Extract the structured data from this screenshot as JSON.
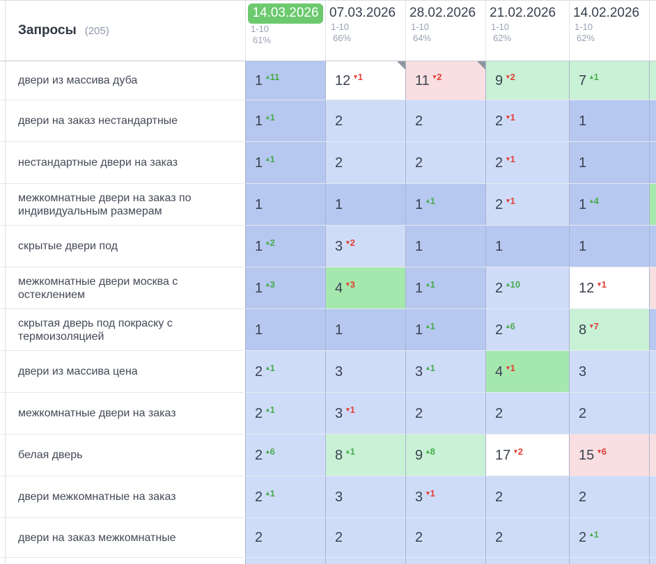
{
  "header": {
    "title": "Запросы",
    "count": "(205)"
  },
  "columns": [
    {
      "date": "14.03.2026",
      "range": "1-10",
      "percent": "61%",
      "selected": true
    },
    {
      "date": "07.03.2026",
      "range": "1-10",
      "percent": "66%"
    },
    {
      "date": "28.02.2026",
      "range": "1-10",
      "percent": "64%"
    },
    {
      "date": "21.02.2026",
      "range": "1-10",
      "percent": "62%"
    },
    {
      "date": "14.02.2026",
      "range": "1-10",
      "percent": "62%"
    },
    {
      "partial": true
    }
  ],
  "rows": [
    {
      "keyword": "двери из массива дуба",
      "extra": "lgreen",
      "cells": [
        {
          "pos": "1",
          "delta": "11",
          "dir": "up",
          "bg": "blue1"
        },
        {
          "pos": "12",
          "delta": "1",
          "dir": "down",
          "bg": "white",
          "note": true
        },
        {
          "pos": "11",
          "delta": "2",
          "dir": "down",
          "bg": "pink",
          "note": true
        },
        {
          "pos": "9",
          "delta": "2",
          "dir": "down",
          "bg": "lgreen"
        },
        {
          "pos": "7",
          "delta": "1",
          "dir": "up",
          "bg": "lgreen"
        }
      ]
    },
    {
      "keyword": "двери на заказ нестандартные",
      "extra": "blue1",
      "cells": [
        {
          "pos": "1",
          "delta": "1",
          "dir": "up",
          "bg": "blue1"
        },
        {
          "pos": "2",
          "bg": "blue2"
        },
        {
          "pos": "2",
          "bg": "blue2"
        },
        {
          "pos": "2",
          "delta": "1",
          "dir": "down",
          "bg": "blue2"
        },
        {
          "pos": "1",
          "bg": "blue1"
        }
      ]
    },
    {
      "keyword": "нестандартные двери на заказ",
      "extra": "blue1",
      "cells": [
        {
          "pos": "1",
          "delta": "1",
          "dir": "up",
          "bg": "blue1"
        },
        {
          "pos": "2",
          "bg": "blue2"
        },
        {
          "pos": "2",
          "bg": "blue2"
        },
        {
          "pos": "2",
          "delta": "1",
          "dir": "down",
          "bg": "blue2"
        },
        {
          "pos": "1",
          "bg": "blue1"
        }
      ]
    },
    {
      "keyword": "межкомнатные двери на заказ по индивидуальным размерам",
      "extra": "green",
      "cells": [
        {
          "pos": "1",
          "bg": "blue1"
        },
        {
          "pos": "1",
          "bg": "blue1"
        },
        {
          "pos": "1",
          "delta": "1",
          "dir": "up",
          "bg": "blue1"
        },
        {
          "pos": "2",
          "delta": "1",
          "dir": "down",
          "bg": "blue2"
        },
        {
          "pos": "1",
          "delta": "4",
          "dir": "up",
          "bg": "blue1"
        }
      ]
    },
    {
      "keyword": "скрытые двери под",
      "extra": "blue1",
      "cells": [
        {
          "pos": "1",
          "delta": "2",
          "dir": "up",
          "bg": "blue1"
        },
        {
          "pos": "3",
          "delta": "2",
          "dir": "down",
          "bg": "blue2"
        },
        {
          "pos": "1",
          "bg": "blue1"
        },
        {
          "pos": "1",
          "bg": "blue1"
        },
        {
          "pos": "1",
          "bg": "blue1"
        }
      ]
    },
    {
      "keyword": "межкомнатные двери москва с остеклением",
      "extra": "pink",
      "cells": [
        {
          "pos": "1",
          "delta": "3",
          "dir": "up",
          "bg": "blue1"
        },
        {
          "pos": "4",
          "delta": "3",
          "dir": "down",
          "bg": "green"
        },
        {
          "pos": "1",
          "delta": "1",
          "dir": "up",
          "bg": "blue1"
        },
        {
          "pos": "2",
          "delta": "10",
          "dir": "up",
          "bg": "blue2"
        },
        {
          "pos": "12",
          "delta": "1",
          "dir": "down",
          "bg": "white"
        }
      ]
    },
    {
      "keyword": "скрытая дверь под покраску с термоизоляцией",
      "extra": "blue1",
      "cells": [
        {
          "pos": "1",
          "bg": "blue1"
        },
        {
          "pos": "1",
          "bg": "blue1"
        },
        {
          "pos": "1",
          "delta": "1",
          "dir": "up",
          "bg": "blue1"
        },
        {
          "pos": "2",
          "delta": "6",
          "dir": "up",
          "bg": "blue2"
        },
        {
          "pos": "8",
          "delta": "7",
          "dir": "down",
          "bg": "lgreen"
        }
      ]
    },
    {
      "keyword": "двери из массива цена",
      "extra": "blue2",
      "cells": [
        {
          "pos": "2",
          "delta": "1",
          "dir": "up",
          "bg": "blue2"
        },
        {
          "pos": "3",
          "bg": "blue2"
        },
        {
          "pos": "3",
          "delta": "1",
          "dir": "up",
          "bg": "blue2"
        },
        {
          "pos": "4",
          "delta": "1",
          "dir": "down",
          "bg": "green"
        },
        {
          "pos": "3",
          "bg": "blue2"
        }
      ]
    },
    {
      "keyword": "межкомнатные двери на заказ",
      "extra": "blue2",
      "cells": [
        {
          "pos": "2",
          "delta": "1",
          "dir": "up",
          "bg": "blue2"
        },
        {
          "pos": "3",
          "delta": "1",
          "dir": "down",
          "bg": "blue2"
        },
        {
          "pos": "2",
          "bg": "blue2"
        },
        {
          "pos": "2",
          "bg": "blue2"
        },
        {
          "pos": "2",
          "bg": "blue2"
        }
      ]
    },
    {
      "keyword": "белая дверь",
      "extra": "pink",
      "cells": [
        {
          "pos": "2",
          "delta": "6",
          "dir": "up",
          "bg": "blue2"
        },
        {
          "pos": "8",
          "delta": "1",
          "dir": "up",
          "bg": "lgreen"
        },
        {
          "pos": "9",
          "delta": "8",
          "dir": "up",
          "bg": "lgreen"
        },
        {
          "pos": "17",
          "delta": "2",
          "dir": "down",
          "bg": "white"
        },
        {
          "pos": "15",
          "delta": "6",
          "dir": "down",
          "bg": "pink"
        }
      ]
    },
    {
      "keyword": "двери межкомнатные на заказ",
      "extra": "blue2",
      "cells": [
        {
          "pos": "2",
          "delta": "1",
          "dir": "up",
          "bg": "blue2"
        },
        {
          "pos": "3",
          "bg": "blue2"
        },
        {
          "pos": "3",
          "delta": "1",
          "dir": "down",
          "bg": "blue2"
        },
        {
          "pos": "2",
          "bg": "blue2"
        },
        {
          "pos": "2",
          "bg": "blue2"
        }
      ]
    },
    {
      "keyword": "двери на заказ межкомнатные",
      "extra": "blue2",
      "cells": [
        {
          "pos": "2",
          "bg": "blue2"
        },
        {
          "pos": "2",
          "bg": "blue2"
        },
        {
          "pos": "2",
          "bg": "blue2"
        },
        {
          "pos": "2",
          "bg": "blue2"
        },
        {
          "pos": "2",
          "delta": "1",
          "dir": "up",
          "bg": "blue2"
        }
      ]
    },
    {
      "keyword": "",
      "extra": "blue2",
      "cells": [
        {
          "bg": "blue2"
        },
        {
          "bg": "blue2"
        },
        {
          "bg": "blue2"
        },
        {
          "bg": "blue2"
        },
        {
          "bg": "blue2"
        }
      ]
    }
  ],
  "colors": {
    "selected_date_badge": "#6cc96e",
    "position_top1_blue": "#b6c8f0",
    "position_top3_blue": "#cfdcf8",
    "position_green": "#a5e8ae",
    "position_light_green": "#c9f1d6",
    "position_pink": "#f9dfe1",
    "delta_up": "#47ab4c",
    "delta_down": "#e23e35"
  },
  "icons": {
    "up_arrow": "▴",
    "down_arrow": "▾"
  }
}
